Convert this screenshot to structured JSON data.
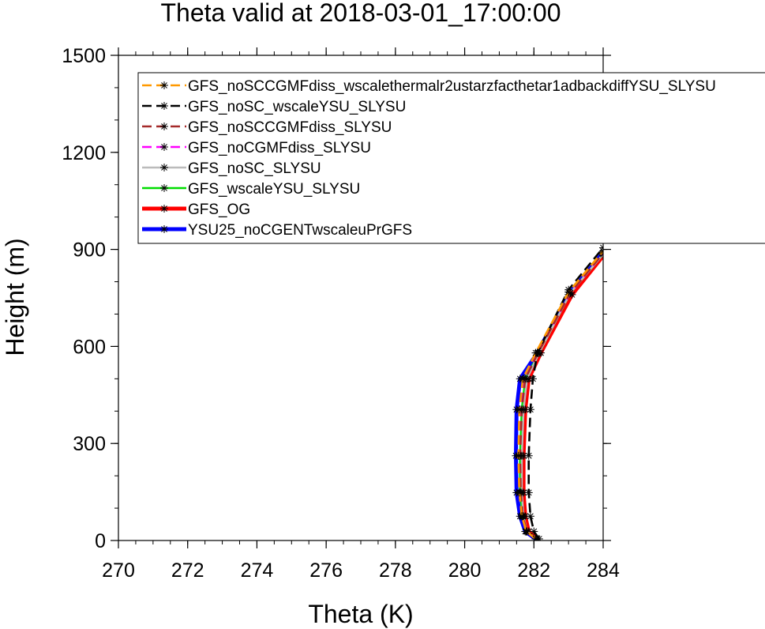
{
  "chart_data": {
    "type": "line",
    "title": "Theta valid at 2018-03-01_17:00:00",
    "xlabel": "Theta (K)",
    "ylabel": "Height (m)",
    "xlim": [
      270,
      284
    ],
    "ylim": [
      0,
      1500
    ],
    "xticks": [
      "270",
      "272",
      "274",
      "276",
      "278",
      "280",
      "282",
      "284"
    ],
    "yticks": [
      "0",
      "300",
      "600",
      "900",
      "1200",
      "1500"
    ],
    "grid": false,
    "legend_position": "top-right",
    "series": [
      {
        "name": "YSU25_noCGENTwscaleuPrGFS",
        "color": "#0000ff",
        "dash": "solid",
        "width": "thick",
        "x": [
          282.05,
          281.75,
          281.6,
          281.5,
          281.48,
          281.5,
          281.6,
          282.1,
          283.0,
          284.0
        ],
        "y": [
          5,
          28,
          75,
          148,
          262,
          405,
          500,
          580,
          760,
          890
        ]
      },
      {
        "name": "GFS_OG",
        "color": "#ff0000",
        "dash": "solid",
        "width": "thick",
        "x": [
          282.1,
          281.85,
          281.75,
          281.7,
          281.7,
          281.75,
          281.85,
          282.2,
          283.1,
          284.0
        ],
        "y": [
          5,
          28,
          75,
          148,
          262,
          405,
          500,
          580,
          760,
          880
        ]
      },
      {
        "name": "GFS_wscaleYSU_SLYSU",
        "color": "#00dd00",
        "dash": "solid",
        "width": "normal",
        "x": [
          282.08,
          281.8,
          281.68,
          281.6,
          281.6,
          281.65,
          281.75,
          282.15,
          283.05,
          284.0
        ],
        "y": [
          5,
          28,
          75,
          148,
          262,
          405,
          500,
          580,
          765,
          885
        ]
      },
      {
        "name": "GFS_noSC_SLYSU",
        "color": "#bbbbbb",
        "dash": "solid",
        "width": "normal",
        "x": [
          282.08,
          281.8,
          281.7,
          281.65,
          281.65,
          281.7,
          281.8,
          282.15,
          283.05,
          284.0
        ],
        "y": [
          5,
          28,
          75,
          148,
          262,
          405,
          500,
          580,
          765,
          885
        ]
      },
      {
        "name": "GFS_noCGMFdiss_SLYSU",
        "color": "#ff00ff",
        "dash": "dash",
        "width": "normal",
        "x": [
          282.05,
          281.78,
          281.65,
          281.58,
          281.56,
          281.6,
          281.7,
          282.1,
          283.05,
          284.0
        ],
        "y": [
          5,
          28,
          75,
          148,
          262,
          405,
          500,
          580,
          765,
          888
        ]
      },
      {
        "name": "GFS_noSCCGMFdiss_SLYSU",
        "color": "#a52a2a",
        "dash": "dash",
        "width": "normal",
        "x": [
          282.08,
          281.8,
          281.68,
          281.62,
          281.6,
          281.65,
          281.75,
          282.12,
          283.05,
          284.0
        ],
        "y": [
          5,
          28,
          75,
          148,
          262,
          405,
          500,
          580,
          765,
          888
        ]
      },
      {
        "name": "GFS_noSC_wscaleYSU_SLYSU",
        "color": "#000000",
        "dash": "dash",
        "width": "normal",
        "x": [
          282.15,
          282.0,
          281.9,
          281.85,
          281.85,
          281.9,
          281.97,
          282.1,
          283.0,
          284.0
        ],
        "y": [
          5,
          28,
          75,
          148,
          262,
          405,
          500,
          580,
          775,
          905
        ]
      },
      {
        "name": "GFS_noSCCGMFdiss_wscalethermalr2ustarzfacthetar1adbackdiffYSU_SLYSU",
        "color": "#ff9900",
        "dash": "dash",
        "width": "normal",
        "x": [
          282.05,
          281.78,
          281.65,
          281.58,
          281.55,
          281.58,
          281.68,
          282.05,
          283.0,
          284.0
        ],
        "y": [
          5,
          28,
          75,
          148,
          262,
          405,
          500,
          580,
          768,
          895
        ]
      }
    ],
    "legend_order": [
      "GFS_noSCCGMFdiss_wscalethermalr2ustarzfacthetar1adbackdiffYSU_SLYSU",
      "GFS_noSC_wscaleYSU_SLYSU",
      "GFS_noSCCGMFdiss_SLYSU",
      "GFS_noCGMFdiss_SLYSU",
      "GFS_noSC_SLYSU",
      "GFS_wscaleYSU_SLYSU",
      "GFS_OG",
      "YSU25_noCGENTwscaleuPrGFS"
    ]
  }
}
